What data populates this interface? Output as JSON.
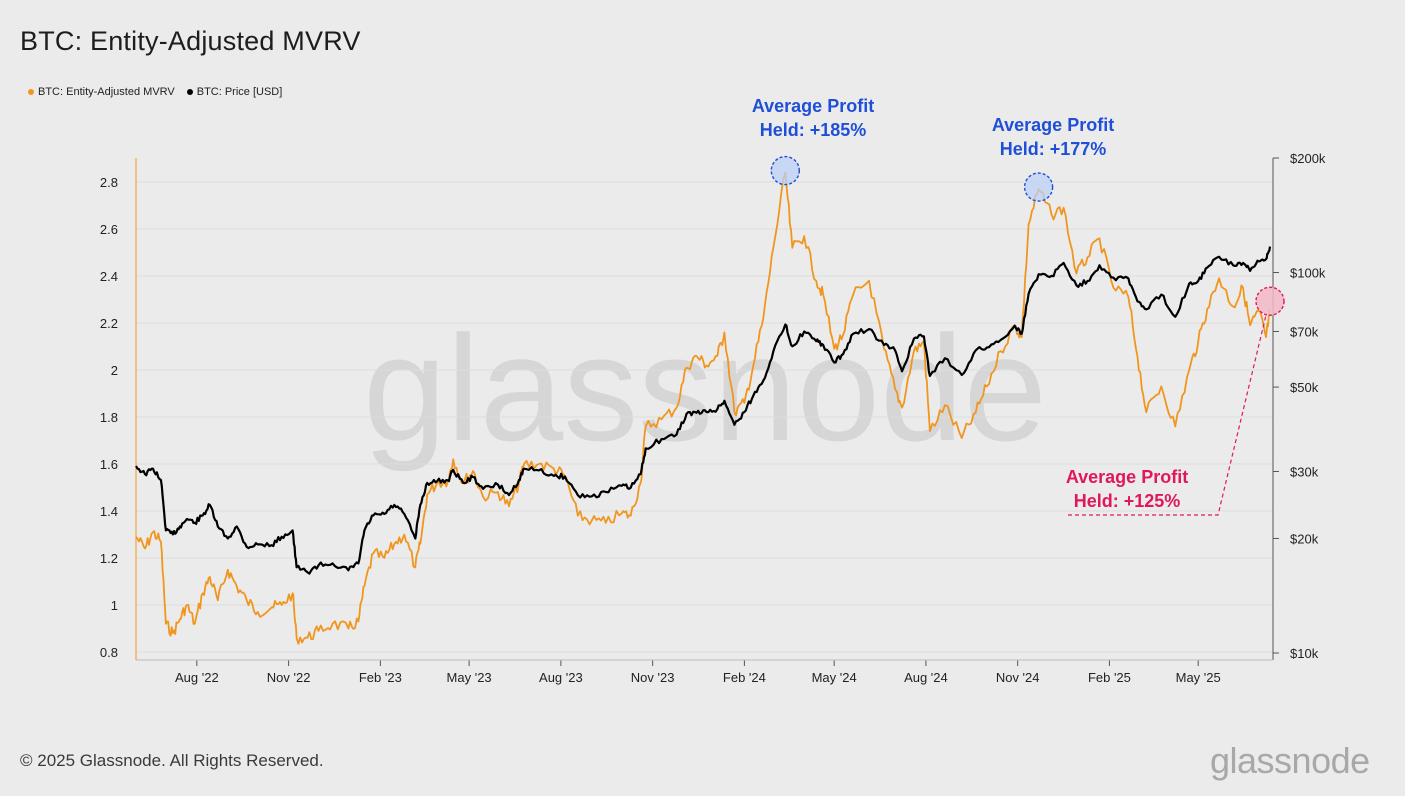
{
  "header": {
    "title": "BTC: Entity-Adjusted MVRV"
  },
  "legend": [
    {
      "label": "BTC: Entity-Adjusted MVRV",
      "color": "#f0961f"
    },
    {
      "label": "BTC: Price [USD]",
      "color": "#000000"
    }
  ],
  "footer": {
    "copyright": "© 2025 Glassnode. All Rights Reserved.",
    "logo_text": "glassnode"
  },
  "watermark": "glassnode",
  "chart_data": {
    "type": "line",
    "title": "BTC: Entity-Adjusted MVRV",
    "x_ticks": [
      "Aug '22",
      "Nov '22",
      "Feb '23",
      "May '23",
      "Aug '23",
      "Nov '23",
      "Feb '24",
      "May '24",
      "Aug '24",
      "Nov '24",
      "Feb '25",
      "May '25"
    ],
    "y_left": {
      "ticks": [
        "0.8",
        "1",
        "1.2",
        "1.4",
        "1.6",
        "1.8",
        "2",
        "2.2",
        "2.4",
        "2.6",
        "2.8"
      ],
      "range": [
        0.8,
        2.9
      ]
    },
    "y_right": {
      "scale": "log",
      "ticks": [
        "$10k",
        "$20k",
        "$30k",
        "$50k",
        "$70k",
        "$100k",
        "$200k"
      ],
      "tick_values": [
        10000,
        20000,
        30000,
        50000,
        70000,
        100000,
        200000
      ],
      "range": [
        10000,
        200000
      ]
    },
    "x_range": [
      "2022-06",
      "2025-07"
    ],
    "series": [
      {
        "name": "BTC: Entity-Adjusted MVRV",
        "color": "#f0961f",
        "axis": "left",
        "points": [
          [
            "2022-06-01",
            1.29
          ],
          [
            "2022-06-10",
            1.24
          ],
          [
            "2022-06-18",
            1.31
          ],
          [
            "2022-06-26",
            1.27
          ],
          [
            "2022-07-01",
            0.92
          ],
          [
            "2022-07-08",
            0.88
          ],
          [
            "2022-07-15",
            0.94
          ],
          [
            "2022-07-22",
            1.0
          ],
          [
            "2022-07-30",
            0.92
          ],
          [
            "2022-08-07",
            1.05
          ],
          [
            "2022-08-14",
            1.12
          ],
          [
            "2022-08-22",
            1.02
          ],
          [
            "2022-09-01",
            1.15
          ],
          [
            "2022-09-10",
            1.08
          ],
          [
            "2022-09-20",
            1.02
          ],
          [
            "2022-10-01",
            0.97
          ],
          [
            "2022-10-15",
            0.99
          ],
          [
            "2022-10-25",
            1.0
          ],
          [
            "2022-11-05",
            1.05
          ],
          [
            "2022-11-09",
            0.86
          ],
          [
            "2022-11-20",
            0.86
          ],
          [
            "2022-12-01",
            0.89
          ],
          [
            "2022-12-15",
            0.92
          ],
          [
            "2022-12-31",
            0.9
          ],
          [
            "2023-01-10",
            0.93
          ],
          [
            "2023-01-16",
            1.08
          ],
          [
            "2023-01-25",
            1.22
          ],
          [
            "2023-02-05",
            1.2
          ],
          [
            "2023-02-15",
            1.26
          ],
          [
            "2023-02-25",
            1.3
          ],
          [
            "2023-03-08",
            1.16
          ],
          [
            "2023-03-13",
            1.26
          ],
          [
            "2023-03-20",
            1.47
          ],
          [
            "2023-03-30",
            1.52
          ],
          [
            "2023-04-10",
            1.53
          ],
          [
            "2023-04-15",
            1.62
          ],
          [
            "2023-04-25",
            1.52
          ],
          [
            "2023-05-05",
            1.57
          ],
          [
            "2023-05-15",
            1.46
          ],
          [
            "2023-05-30",
            1.48
          ],
          [
            "2023-06-10",
            1.42
          ],
          [
            "2023-06-20",
            1.52
          ],
          [
            "2023-06-25",
            1.6
          ],
          [
            "2023-07-10",
            1.6
          ],
          [
            "2023-07-25",
            1.58
          ],
          [
            "2023-08-05",
            1.55
          ],
          [
            "2023-08-18",
            1.38
          ],
          [
            "2023-09-01",
            1.36
          ],
          [
            "2023-09-15",
            1.35
          ],
          [
            "2023-10-01",
            1.39
          ],
          [
            "2023-10-10",
            1.38
          ],
          [
            "2023-10-20",
            1.52
          ],
          [
            "2023-10-25",
            1.76
          ],
          [
            "2023-11-10",
            1.79
          ],
          [
            "2023-11-25",
            1.84
          ],
          [
            "2023-12-05",
            2.01
          ],
          [
            "2023-12-15",
            2.06
          ],
          [
            "2023-12-25",
            2.02
          ],
          [
            "2024-01-05",
            2.06
          ],
          [
            "2024-01-12",
            2.16
          ],
          [
            "2024-01-22",
            1.82
          ],
          [
            "2024-02-01",
            1.86
          ],
          [
            "2024-02-10",
            2.02
          ],
          [
            "2024-02-20",
            2.22
          ],
          [
            "2024-03-01",
            2.52
          ],
          [
            "2024-03-13",
            2.84
          ],
          [
            "2024-03-20",
            2.52
          ],
          [
            "2024-04-01",
            2.57
          ],
          [
            "2024-04-13",
            2.38
          ],
          [
            "2024-04-20",
            2.32
          ],
          [
            "2024-05-01",
            2.09
          ],
          [
            "2024-05-10",
            2.15
          ],
          [
            "2024-05-20",
            2.32
          ],
          [
            "2024-06-05",
            2.38
          ],
          [
            "2024-06-20",
            2.09
          ],
          [
            "2024-07-01",
            1.92
          ],
          [
            "2024-07-08",
            1.84
          ],
          [
            "2024-07-20",
            2.08
          ],
          [
            "2024-07-30",
            2.12
          ],
          [
            "2024-08-05",
            1.74
          ],
          [
            "2024-08-20",
            1.85
          ],
          [
            "2024-09-06",
            1.71
          ],
          [
            "2024-09-20",
            1.82
          ],
          [
            "2024-10-01",
            1.93
          ],
          [
            "2024-10-15",
            2.08
          ],
          [
            "2024-10-29",
            2.19
          ],
          [
            "2024-11-05",
            2.14
          ],
          [
            "2024-11-12",
            2.62
          ],
          [
            "2024-11-22",
            2.77
          ],
          [
            "2024-12-05",
            2.66
          ],
          [
            "2024-12-17",
            2.69
          ],
          [
            "2024-12-30",
            2.41
          ],
          [
            "2025-01-10",
            2.48
          ],
          [
            "2025-01-22",
            2.56
          ],
          [
            "2025-02-05",
            2.35
          ],
          [
            "2025-02-20",
            2.31
          ],
          [
            "2025-03-01",
            2.06
          ],
          [
            "2025-03-10",
            1.82
          ],
          [
            "2025-03-25",
            1.93
          ],
          [
            "2025-04-08",
            1.76
          ],
          [
            "2025-04-22",
            2.0
          ],
          [
            "2025-05-01",
            2.12
          ],
          [
            "2025-05-10",
            2.26
          ],
          [
            "2025-05-22",
            2.39
          ],
          [
            "2025-06-05",
            2.27
          ],
          [
            "2025-06-15",
            2.35
          ],
          [
            "2025-06-22",
            2.19
          ],
          [
            "2025-07-01",
            2.25
          ],
          [
            "2025-07-08",
            2.14
          ],
          [
            "2025-07-12",
            2.25
          ]
        ]
      },
      {
        "name": "BTC: Price [USD]",
        "color": "#000000",
        "axis": "right",
        "points": [
          [
            "2022-06-01",
            31000
          ],
          [
            "2022-06-10",
            29500
          ],
          [
            "2022-06-18",
            30500
          ],
          [
            "2022-06-26",
            28500
          ],
          [
            "2022-07-01",
            21000
          ],
          [
            "2022-07-08",
            20500
          ],
          [
            "2022-07-15",
            21500
          ],
          [
            "2022-07-22",
            22500
          ],
          [
            "2022-07-30",
            22000
          ],
          [
            "2022-08-07",
            23000
          ],
          [
            "2022-08-14",
            24500
          ],
          [
            "2022-08-22",
            21500
          ],
          [
            "2022-09-01",
            20000
          ],
          [
            "2022-09-10",
            21500
          ],
          [
            "2022-09-20",
            19000
          ],
          [
            "2022-10-01",
            19300
          ],
          [
            "2022-10-15",
            19200
          ],
          [
            "2022-10-25",
            20200
          ],
          [
            "2022-11-05",
            21000
          ],
          [
            "2022-11-09",
            16800
          ],
          [
            "2022-11-20",
            16300
          ],
          [
            "2022-12-01",
            17000
          ],
          [
            "2022-12-15",
            17200
          ],
          [
            "2022-12-31",
            16500
          ],
          [
            "2023-01-10",
            17200
          ],
          [
            "2023-01-16",
            21000
          ],
          [
            "2023-01-25",
            23000
          ],
          [
            "2023-02-05",
            23200
          ],
          [
            "2023-02-15",
            24500
          ],
          [
            "2023-02-25",
            23200
          ],
          [
            "2023-03-08",
            20000
          ],
          [
            "2023-03-13",
            24500
          ],
          [
            "2023-03-20",
            28000
          ],
          [
            "2023-03-30",
            28300
          ],
          [
            "2023-04-10",
            28400
          ],
          [
            "2023-04-15",
            30300
          ],
          [
            "2023-04-25",
            28000
          ],
          [
            "2023-05-05",
            29000
          ],
          [
            "2023-05-15",
            27000
          ],
          [
            "2023-05-30",
            27700
          ],
          [
            "2023-06-10",
            26000
          ],
          [
            "2023-06-20",
            28500
          ],
          [
            "2023-06-25",
            30500
          ],
          [
            "2023-07-10",
            30200
          ],
          [
            "2023-07-25",
            29200
          ],
          [
            "2023-08-05",
            29100
          ],
          [
            "2023-08-18",
            26000
          ],
          [
            "2023-09-01",
            25800
          ],
          [
            "2023-09-15",
            26500
          ],
          [
            "2023-10-01",
            27500
          ],
          [
            "2023-10-10",
            27200
          ],
          [
            "2023-10-20",
            29500
          ],
          [
            "2023-10-25",
            34500
          ],
          [
            "2023-11-10",
            36500
          ],
          [
            "2023-11-25",
            37500
          ],
          [
            "2023-12-05",
            42500
          ],
          [
            "2023-12-15",
            42800
          ],
          [
            "2023-12-25",
            43000
          ],
          [
            "2024-01-05",
            43800
          ],
          [
            "2024-01-12",
            46000
          ],
          [
            "2024-01-22",
            39800
          ],
          [
            "2024-02-01",
            43000
          ],
          [
            "2024-02-10",
            47500
          ],
          [
            "2024-02-20",
            52000
          ],
          [
            "2024-03-01",
            62000
          ],
          [
            "2024-03-13",
            73000
          ],
          [
            "2024-03-20",
            64000
          ],
          [
            "2024-04-01",
            70000
          ],
          [
            "2024-04-13",
            66000
          ],
          [
            "2024-04-20",
            64500
          ],
          [
            "2024-05-01",
            58000
          ],
          [
            "2024-05-10",
            61000
          ],
          [
            "2024-05-20",
            69000
          ],
          [
            "2024-06-05",
            71000
          ],
          [
            "2024-06-20",
            64500
          ],
          [
            "2024-07-01",
            62500
          ],
          [
            "2024-07-08",
            55000
          ],
          [
            "2024-07-20",
            67000
          ],
          [
            "2024-07-30",
            68000
          ],
          [
            "2024-08-05",
            53500
          ],
          [
            "2024-08-20",
            59500
          ],
          [
            "2024-09-06",
            53800
          ],
          [
            "2024-09-20",
            62500
          ],
          [
            "2024-10-01",
            63500
          ],
          [
            "2024-10-15",
            66500
          ],
          [
            "2024-10-29",
            72500
          ],
          [
            "2024-11-05",
            69000
          ],
          [
            "2024-11-12",
            88000
          ],
          [
            "2024-11-22",
            99000
          ],
          [
            "2024-12-05",
            98000
          ],
          [
            "2024-12-17",
            106000
          ],
          [
            "2024-12-30",
            92500
          ],
          [
            "2025-01-10",
            95000
          ],
          [
            "2025-01-22",
            104500
          ],
          [
            "2025-02-05",
            97000
          ],
          [
            "2025-02-20",
            96500
          ],
          [
            "2025-03-01",
            84000
          ],
          [
            "2025-03-10",
            80000
          ],
          [
            "2025-03-25",
            87500
          ],
          [
            "2025-04-08",
            76500
          ],
          [
            "2025-04-22",
            93500
          ],
          [
            "2025-05-01",
            95000
          ],
          [
            "2025-05-10",
            103000
          ],
          [
            "2025-05-22",
            110000
          ],
          [
            "2025-06-05",
            104500
          ],
          [
            "2025-06-15",
            106000
          ],
          [
            "2025-06-22",
            101000
          ],
          [
            "2025-07-01",
            107000
          ],
          [
            "2025-07-08",
            108500
          ],
          [
            "2025-07-12",
            117000
          ]
        ]
      }
    ],
    "annotations": [
      {
        "text_line1": "Average Profit",
        "text_line2": "Held: +185%",
        "color": "#1f4fd8",
        "date": "2024-03-13",
        "value": 2.84
      },
      {
        "text_line1": "Average Profit",
        "text_line2": "Held: +177%",
        "color": "#1f4fd8",
        "date": "2024-11-22",
        "value": 2.77
      },
      {
        "text_line1": "Average Profit",
        "text_line2": "Held: +125%",
        "color": "#e0185a",
        "date": "2025-07-12",
        "value": 2.25
      }
    ]
  }
}
